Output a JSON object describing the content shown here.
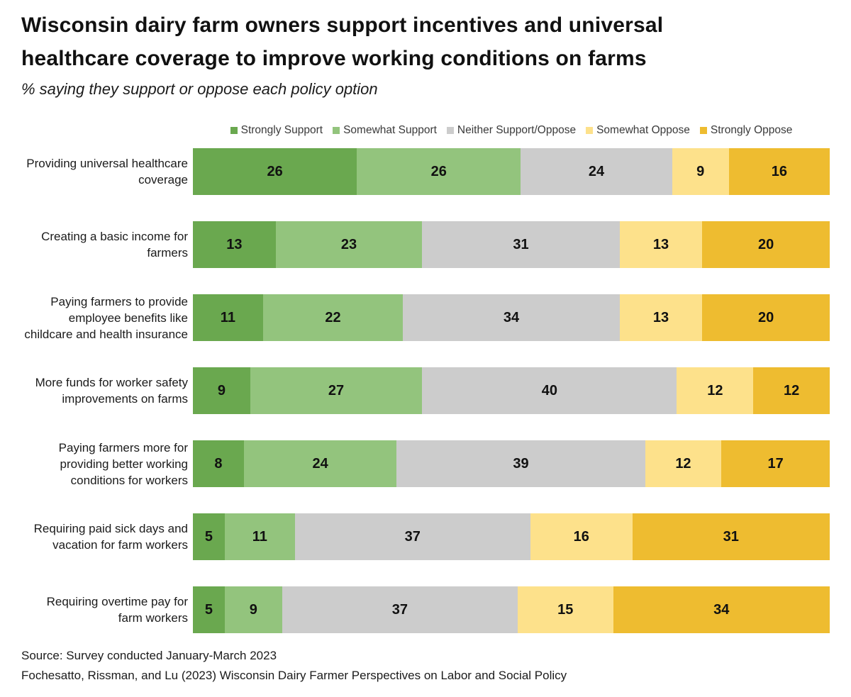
{
  "header": {
    "title_line1": "Wisconsin dairy farm owners support incentives and universal",
    "title_line2": "healthcare coverage to improve working conditions on farms",
    "subtitle": "% saying they support or oppose each policy option"
  },
  "chart_data": {
    "type": "bar",
    "variant": "horizontal_stacked_percent",
    "title": "Wisconsin dairy farm owners support incentives and universal healthcare coverage to improve working conditions on farms",
    "subtitle": "% saying they support or oppose each policy option",
    "legend_position": "top",
    "value_labels": true,
    "xlim": [
      0,
      100
    ],
    "categories": [
      "Providing universal healthcare coverage",
      "Creating a basic income for farmers",
      "Paying farmers to provide employee benefits like childcare and health insurance",
      "More funds for worker safety improvements on farms",
      "Paying farmers more for providing better working conditions for workers",
      "Requiring paid sick days and vacation for farm workers",
      "Requiring overtime pay for farm workers"
    ],
    "series": [
      {
        "name": "Strongly Support",
        "color": "#6aa84f",
        "values": [
          26,
          13,
          11,
          9,
          8,
          5,
          5
        ]
      },
      {
        "name": "Somewhat Support",
        "color": "#93c47d",
        "values": [
          26,
          23,
          22,
          27,
          24,
          11,
          9
        ]
      },
      {
        "name": "Neither Support/Oppose",
        "color": "#cccccc",
        "values": [
          24,
          31,
          34,
          40,
          39,
          37,
          37
        ]
      },
      {
        "name": "Somewhat Oppose",
        "color": "#fde18b",
        "values": [
          9,
          13,
          13,
          12,
          12,
          16,
          15
        ]
      },
      {
        "name": "Strongly Oppose",
        "color": "#eebc30",
        "values": [
          16,
          20,
          20,
          12,
          17,
          31,
          34
        ]
      }
    ]
  },
  "footer": {
    "source_line1": "Source: Survey conducted January-March 2023",
    "source_line2": "Fochesatto, Rissman, and Lu (2023) Wisconsin Dairy Farmer Perspectives on Labor and Social Policy"
  }
}
